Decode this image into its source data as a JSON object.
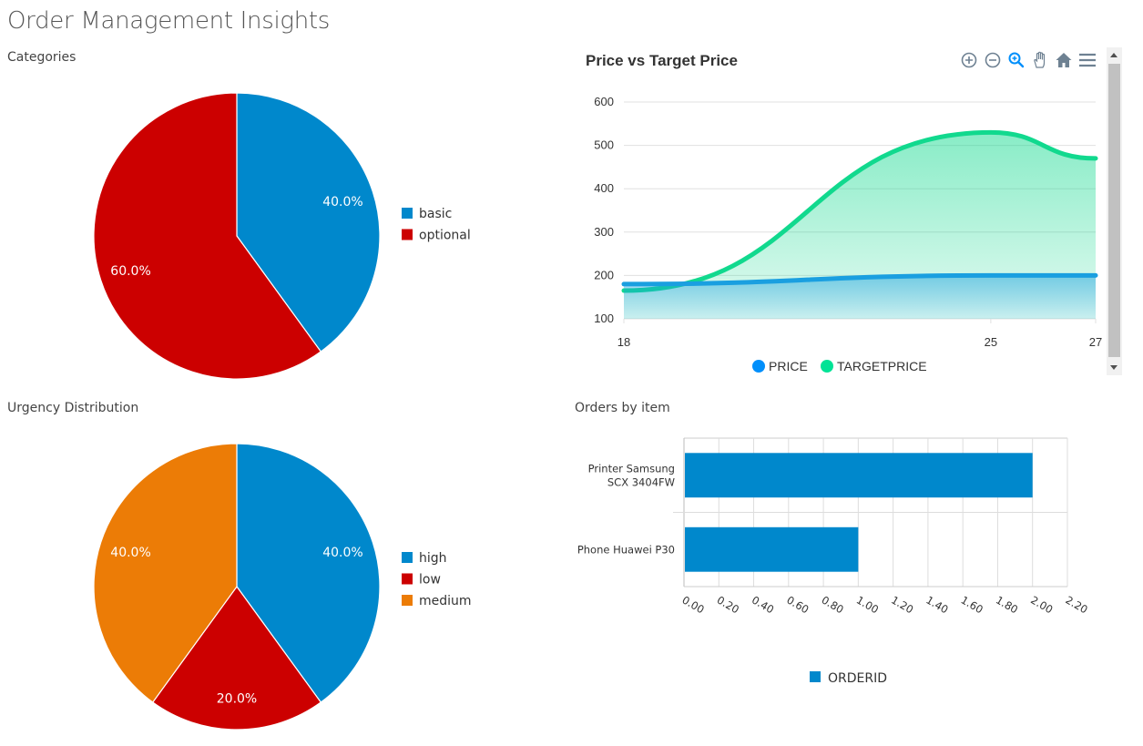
{
  "page": {
    "title": "Order Management Insights"
  },
  "panels": {
    "categories_title": "Categories",
    "urgency_title": "Urgency Distribution",
    "orders_title": "Orders by item"
  },
  "toolbar": {
    "icons": [
      "zoom-in-icon",
      "zoom-out-icon",
      "selection-zoom-icon",
      "pan-hand-icon",
      "home-icon",
      "menu-icon"
    ]
  },
  "colors": {
    "blue": "#0088cc",
    "red": "#cc0000",
    "orange": "#ec7c06",
    "price": "#1a9fe0",
    "target": "#11d98e",
    "legend_price": "#008ffb",
    "legend_target": "#00e396"
  },
  "chart_data": [
    {
      "id": "categories",
      "type": "pie",
      "title": "Categories",
      "labels": [
        "basic",
        "optional"
      ],
      "values": [
        40.0,
        60.0
      ],
      "value_labels": [
        "40.0%",
        "60.0%"
      ],
      "colors": [
        "#0088cc",
        "#cc0000"
      ]
    },
    {
      "id": "price_vs_target",
      "type": "area",
      "title": "Price vs Target Price",
      "x": [
        18,
        25,
        27
      ],
      "x_ticks": [
        "18",
        "25",
        "27"
      ],
      "y_ticks": [
        "100",
        "200",
        "300",
        "400",
        "500",
        "600"
      ],
      "ylim": [
        100,
        600
      ],
      "series": [
        {
          "name": "PRICE",
          "values": [
            180,
            200,
            200
          ]
        },
        {
          "name": "TARGETPRICE",
          "values": [
            165,
            530,
            470
          ]
        }
      ]
    },
    {
      "id": "urgency",
      "type": "pie",
      "title": "Urgency Distribution",
      "labels": [
        "high",
        "low",
        "medium"
      ],
      "values": [
        40.0,
        20.0,
        40.0
      ],
      "value_labels": [
        "40.0%",
        "20.0%",
        "40.0%"
      ],
      "colors": [
        "#0088cc",
        "#cc0000",
        "#ec7c06"
      ]
    },
    {
      "id": "orders_by_item",
      "type": "bar",
      "orientation": "horizontal",
      "title": "Orders by item",
      "categories": [
        [
          "Printer Samsung",
          "SCX 3404FW"
        ],
        [
          "Phone Huawei P30"
        ]
      ],
      "series": [
        {
          "name": "ORDERID",
          "values": [
            2,
            1
          ]
        }
      ],
      "x_ticks": [
        "0.00",
        "0.20",
        "0.40",
        "0.60",
        "0.80",
        "1.00",
        "1.20",
        "1.40",
        "1.60",
        "1.80",
        "2.00",
        "2.20"
      ],
      "xlim": [
        0,
        2.2
      ]
    }
  ]
}
